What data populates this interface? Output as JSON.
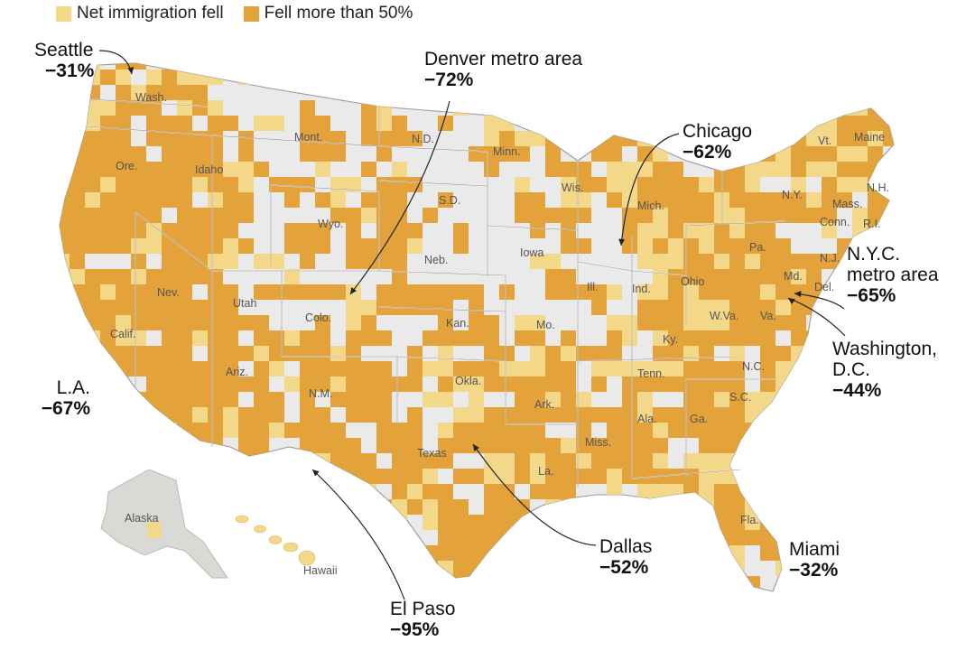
{
  "legend": {
    "items": [
      {
        "label": "Net immigration fell",
        "color": "#f3d88a"
      },
      {
        "label": "Fell more than 50%",
        "color": "#e3a23a"
      }
    ]
  },
  "colors": {
    "no_data_land": "#eaeaea",
    "alaska": "#d9d9d6",
    "fell": "#f3d88a",
    "fell_50": "#e3a23a",
    "border": "#9a9a9a"
  },
  "cities": [
    {
      "id": "seattle",
      "name": "Seattle",
      "pct": "−31%"
    },
    {
      "id": "denver",
      "name": "Denver metro area",
      "pct": "−72%"
    },
    {
      "id": "chicago",
      "name": "Chicago",
      "pct": "−62%"
    },
    {
      "id": "nyc",
      "name": "N.Y.C.",
      "name2": "metro area",
      "pct": "−65%"
    },
    {
      "id": "dc",
      "name": "Washington,",
      "name2": "D.C.",
      "pct": "−44%"
    },
    {
      "id": "la",
      "name": "L.A.",
      "pct": "−67%"
    },
    {
      "id": "elpaso",
      "name": "El Paso",
      "pct": "−95%"
    },
    {
      "id": "dallas",
      "name": "Dallas",
      "pct": "−52%"
    },
    {
      "id": "miami",
      "name": "Miami",
      "pct": "−32%"
    }
  ],
  "states": [
    "Wash.",
    "Ore.",
    "Idaho",
    "Mont.",
    "N.D.",
    "Minn.",
    "Wis.",
    "Mich.",
    "S.D.",
    "Wyo.",
    "Neb.",
    "Iowa",
    "Ill.",
    "Ind.",
    "Ohio",
    "Pa.",
    "N.Y.",
    "Vt.",
    "Maine",
    "N.H.",
    "Mass.",
    "Conn.",
    "R.I.",
    "N.J.",
    "Md.",
    "Del.",
    "W.Va.",
    "Va.",
    "Ky.",
    "N.C.",
    "S.C.",
    "Tenn.",
    "Ga.",
    "Ala.",
    "Miss.",
    "La.",
    "Ark.",
    "Mo.",
    "Kan.",
    "Okla.",
    "Texas",
    "N.M.",
    "Colo.",
    "Utah",
    "Nev.",
    "Calif.",
    "Ariz.",
    "Fla.",
    "Alaska",
    "Hawaii"
  ]
}
